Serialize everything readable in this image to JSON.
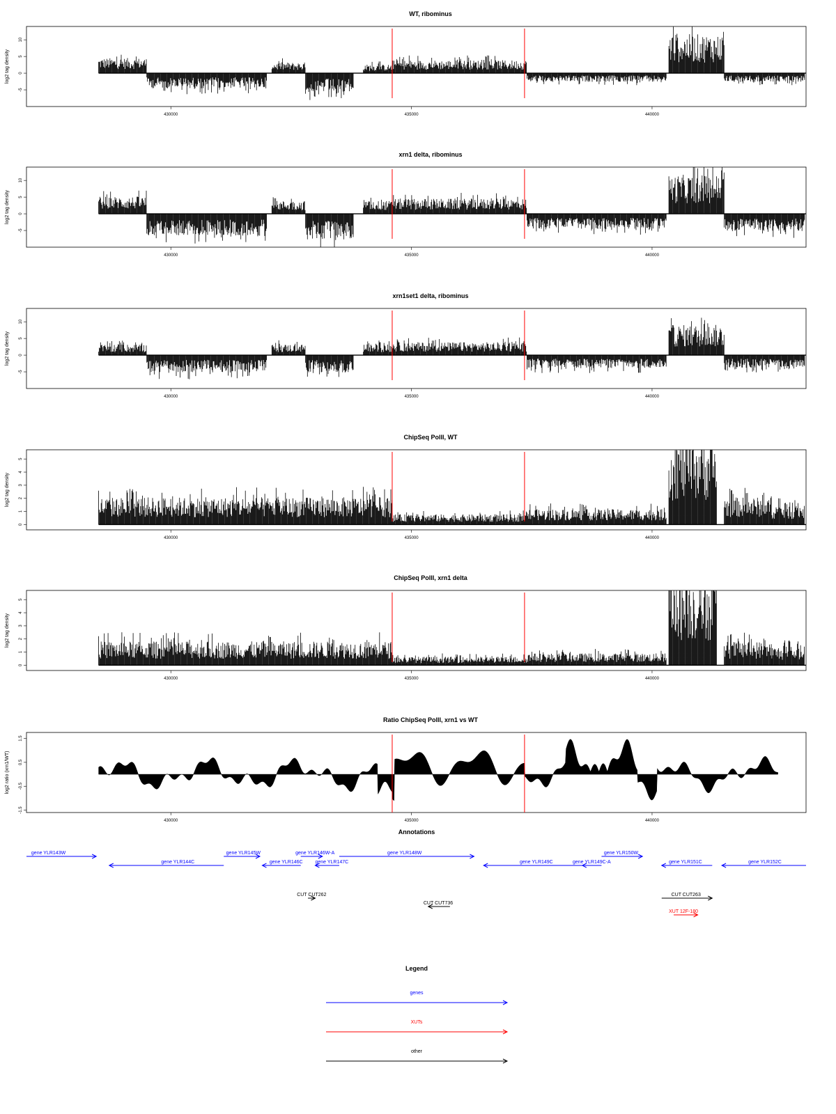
{
  "colors": {
    "genes": "#0000ff",
    "xuts": "#ff0000",
    "other": "#000000",
    "marker": "#ff0000",
    "signal": "#000000"
  },
  "chart_data": [
    {
      "type": "bar",
      "title": "WT, ribominus",
      "ylabel": "log2 tag density",
      "xlim": [
        427000,
        443200
      ],
      "ylim": [
        -10,
        14
      ],
      "yticks": [
        -5,
        0,
        5,
        10
      ],
      "xticks": [
        430000,
        435000,
        440000
      ],
      "markers": [
        434600,
        437350
      ],
      "segments": [
        {
          "start": 428500,
          "end": 429500,
          "level": 3.5
        },
        {
          "start": 429500,
          "end": 432000,
          "level": -3.5
        },
        {
          "start": 432100,
          "end": 432800,
          "level": 2.5
        },
        {
          "start": 432800,
          "end": 433800,
          "level": -4.5
        },
        {
          "start": 434000,
          "end": 434600,
          "level": 2
        },
        {
          "start": 434600,
          "end": 437400,
          "level": 3
        },
        {
          "start": 437400,
          "end": 440300,
          "level": -2
        },
        {
          "start": 440350,
          "end": 441500,
          "level": 9
        },
        {
          "start": 441500,
          "end": 443500,
          "level": -2
        }
      ]
    },
    {
      "type": "bar",
      "title": "xrn1 delta, ribominus",
      "ylabel": "log2 tag density",
      "xlim": [
        427000,
        443200
      ],
      "ylim": [
        -10,
        14
      ],
      "yticks": [
        -5,
        0,
        5,
        10
      ],
      "xticks": [
        430000,
        435000,
        440000
      ],
      "markers": [
        434600,
        437350
      ],
      "segments": [
        {
          "start": 428500,
          "end": 429500,
          "level": 4
        },
        {
          "start": 429500,
          "end": 432000,
          "level": -5
        },
        {
          "start": 432100,
          "end": 432800,
          "level": 3
        },
        {
          "start": 432800,
          "end": 433800,
          "level": -6
        },
        {
          "start": 434000,
          "end": 434600,
          "level": 3
        },
        {
          "start": 434600,
          "end": 437400,
          "level": 3.5
        },
        {
          "start": 437400,
          "end": 440300,
          "level": -3.5
        },
        {
          "start": 440350,
          "end": 441500,
          "level": 9
        },
        {
          "start": 441500,
          "end": 443500,
          "level": -4
        }
      ]
    },
    {
      "type": "bar",
      "title": "xrn1set1 delta, ribominus",
      "ylabel": "log2 tag density",
      "xlim": [
        427000,
        443200
      ],
      "ylim": [
        -10,
        14
      ],
      "yticks": [
        -5,
        0,
        5,
        10
      ],
      "xticks": [
        430000,
        435000,
        440000
      ],
      "markers": [
        434600,
        437350
      ],
      "segments": [
        {
          "start": 428500,
          "end": 429500,
          "level": 2.5
        },
        {
          "start": 429500,
          "end": 432000,
          "level": -4
        },
        {
          "start": 432100,
          "end": 432800,
          "level": 2.5
        },
        {
          "start": 432800,
          "end": 433800,
          "level": -4
        },
        {
          "start": 434000,
          "end": 434600,
          "level": 2.5
        },
        {
          "start": 434600,
          "end": 437400,
          "level": 3
        },
        {
          "start": 437400,
          "end": 440300,
          "level": -3
        },
        {
          "start": 440350,
          "end": 441500,
          "level": 7
        },
        {
          "start": 441500,
          "end": 443500,
          "level": -3
        }
      ]
    },
    {
      "type": "bar",
      "title": "ChipSeq PolII, WT",
      "ylabel": "log2 tag density",
      "xlim": [
        427000,
        443200
      ],
      "ylim": [
        -0.4,
        5.7
      ],
      "yticks": [
        0,
        1,
        2,
        3,
        4,
        5
      ],
      "xticks": [
        430000,
        435000,
        440000
      ],
      "markers": [
        434600,
        437350
      ],
      "segments": [
        {
          "start": 428500,
          "end": 434600,
          "level": 1.6
        },
        {
          "start": 434600,
          "end": 437400,
          "level": 0.6
        },
        {
          "start": 437400,
          "end": 440300,
          "level": 0.9
        },
        {
          "start": 440350,
          "end": 441350,
          "level": 5.2
        },
        {
          "start": 441500,
          "end": 442500,
          "level": 1.6
        },
        {
          "start": 442500,
          "end": 443500,
          "level": 1.2
        }
      ]
    },
    {
      "type": "bar",
      "title": "ChipSeq PolII, xrn1 delta",
      "ylabel": "log2 tag density",
      "xlim": [
        427000,
        443200
      ],
      "ylim": [
        -0.4,
        5.7
      ],
      "yticks": [
        0,
        1,
        2,
        3,
        4,
        5
      ],
      "xticks": [
        430000,
        435000,
        440000
      ],
      "markers": [
        434600,
        437350
      ],
      "segments": [
        {
          "start": 428500,
          "end": 434600,
          "level": 1.4
        },
        {
          "start": 434600,
          "end": 437400,
          "level": 0.5
        },
        {
          "start": 437400,
          "end": 440300,
          "level": 0.7
        },
        {
          "start": 440350,
          "end": 441350,
          "level": 5.2
        },
        {
          "start": 441500,
          "end": 442500,
          "level": 1.4
        },
        {
          "start": 442500,
          "end": 443500,
          "level": 1.1
        }
      ]
    },
    {
      "type": "area",
      "title": "Ratio ChipSeq PolII, xrn1 vs WT",
      "ylabel": "log2 ratio (xrn1/WT)",
      "xlim": [
        427000,
        443200
      ],
      "ylim": [
        -1.6,
        1.75
      ],
      "yticks": [
        -1.5,
        -0.5,
        0.5,
        1.5
      ],
      "xticks": [
        430000,
        435000,
        440000
      ],
      "markers": [
        434600,
        437350
      ],
      "segments": []
    }
  ],
  "annotations": {
    "title": "Annotations",
    "genes": [
      {
        "label": "gene YLR143W",
        "start": 427000,
        "end": 428450,
        "dir": "+",
        "row": 0,
        "label_x": 427100
      },
      {
        "label": "gene YLR144C",
        "start": 428720,
        "end": 431100,
        "dir": "-",
        "row": 1,
        "label_x": 429800
      },
      {
        "label": "gene YLR145W",
        "start": 431100,
        "end": 431850,
        "dir": "+",
        "row": 0,
        "label_x": 431150
      },
      {
        "label": "gene YLR146C",
        "start": 431900,
        "end": 432700,
        "dir": "-",
        "row": 1,
        "label_x": 432050
      },
      {
        "label": "gene YLR146W-A",
        "start": 432700,
        "end": 433150,
        "dir": "+",
        "row": 0,
        "label_x": 432590
      },
      {
        "label": "gene YLR147C",
        "start": 433000,
        "end": 433500,
        "dir": "-",
        "row": 1,
        "label_x": 433000
      },
      {
        "label": "gene YLR148W",
        "start": 433500,
        "end": 436300,
        "dir": "+",
        "row": 0,
        "label_x": 434500
      },
      {
        "label": "gene YLR149C",
        "start": 436500,
        "end": 438700,
        "dir": "-",
        "row": 1,
        "label_x": 437250
      },
      {
        "label": "gene YLR150W",
        "start": 438950,
        "end": 439800,
        "dir": "+",
        "row": 0,
        "label_x": 439000
      },
      {
        "label": "gene YLR149C-A",
        "start": 438550,
        "end": 438950,
        "dir": "-",
        "row": 1,
        "label_x": 438350
      },
      {
        "label": "gene YLR151C",
        "start": 440200,
        "end": 441250,
        "dir": "-",
        "row": 1,
        "label_x": 440350
      },
      {
        "label": "gene YLR152C",
        "start": 441450,
        "end": 443200,
        "dir": "-",
        "row": 1,
        "label_x": 442000
      }
    ],
    "cuts": [
      {
        "label": "CUT CUT262",
        "start": 432850,
        "end": 433000,
        "dir": "+",
        "row": 2,
        "label_x": 432620
      },
      {
        "label": "CUT CUT736",
        "start": 435350,
        "end": 435800,
        "dir": "-",
        "row": 3,
        "label_x": 435250
      },
      {
        "label": "CUT CUT263",
        "start": 440200,
        "end": 441250,
        "dir": "+",
        "row": 2,
        "label_x": 440400
      }
    ],
    "xuts": [
      {
        "label": "XUT 12F-180",
        "start": 440450,
        "end": 440950,
        "dir": "+",
        "row": 4,
        "label_x": 440350
      }
    ]
  },
  "legend": {
    "title": "Legend",
    "items": [
      {
        "label": "genes",
        "kind": "genes"
      },
      {
        "label": "XUTs",
        "kind": "xuts"
      },
      {
        "label": "other",
        "kind": "other"
      }
    ]
  }
}
